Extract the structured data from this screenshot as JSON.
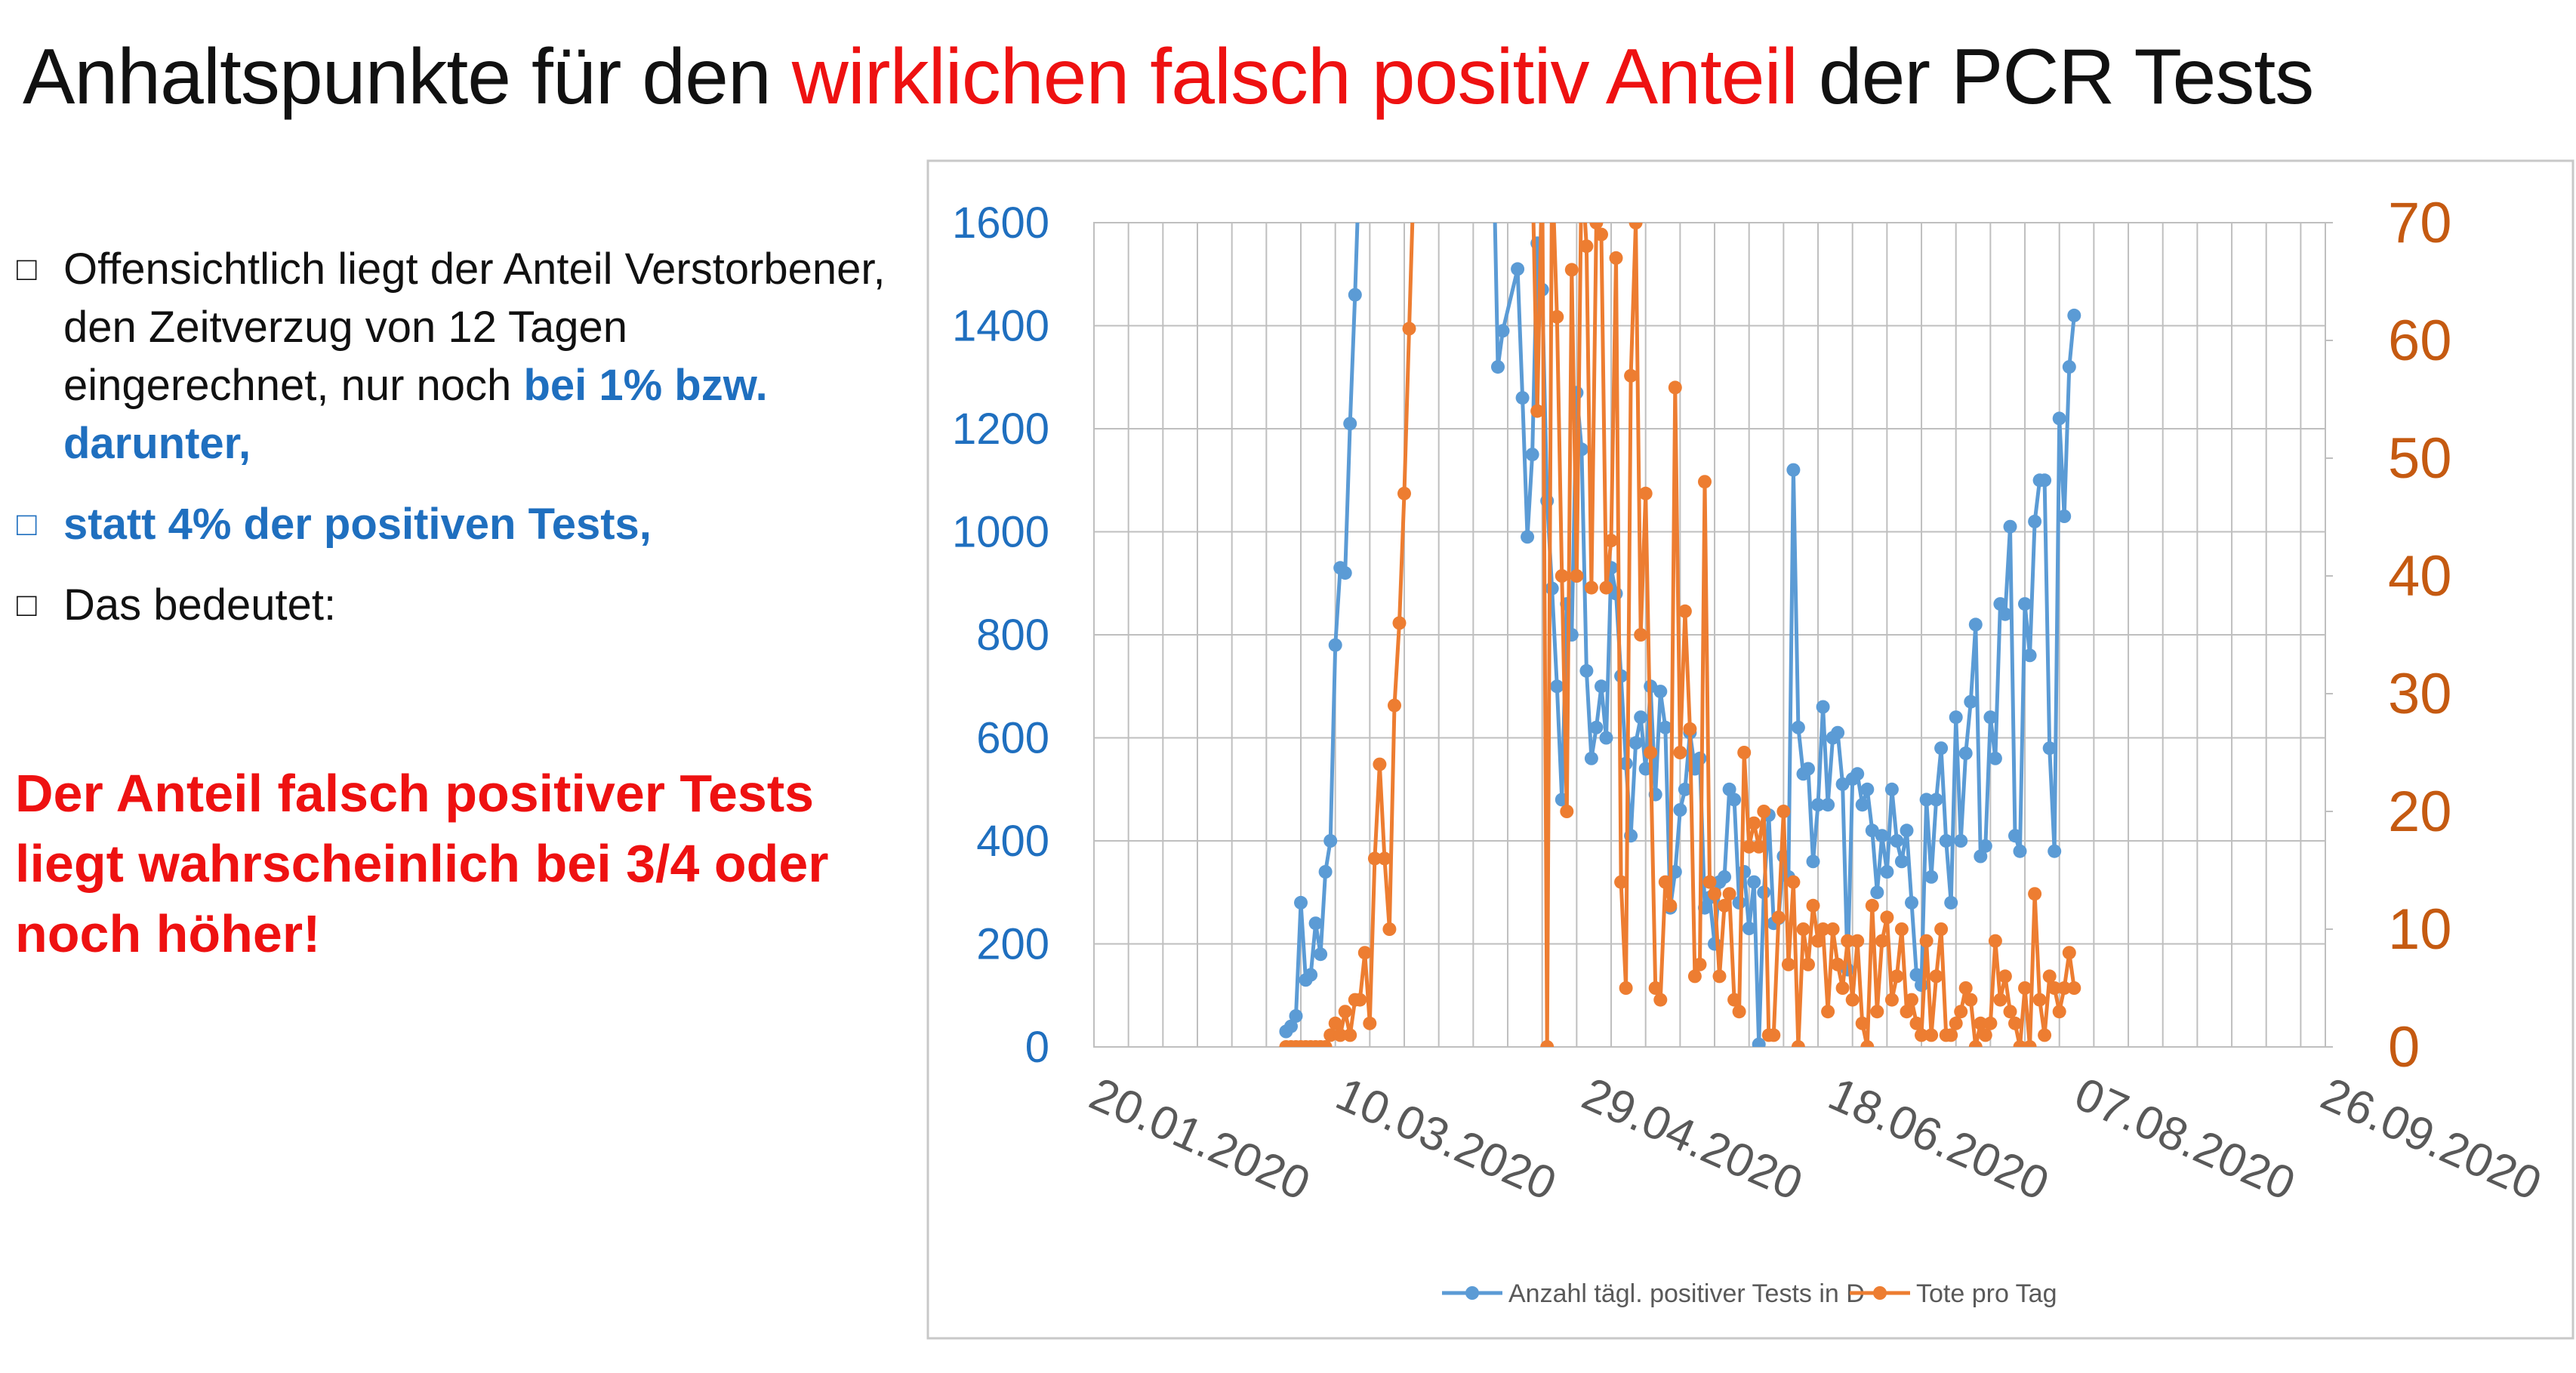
{
  "title": {
    "part1": "Anhaltspunkte für den ",
    "highlight": "wirklichen falsch positiv Anteil",
    "part2": " der PCR Tests"
  },
  "bullets": [
    {
      "marker": "□",
      "text": "Offensichtlich liegt der Anteil Verstorbener, den Zeitverzug von 12 Tagen eingerechnet, nur noch ",
      "bold": "bei 1% bzw. darunter,"
    },
    {
      "marker": "□",
      "text": "",
      "bold": "statt 4% der positiven Tests,"
    },
    {
      "marker": "□",
      "text": "Das bedeutet:",
      "bold": ""
    }
  ],
  "conclusion": "Der Anteil falsch positiver Tests liegt wahrscheinlich bei 3/4 oder noch höher!",
  "colors": {
    "blue_series": "#5b9bd5",
    "orange_series": "#ed7d31",
    "left_axis": "#1f6fbf",
    "right_axis": "#c55a11",
    "highlight": "#ee1111"
  },
  "chart_data": {
    "type": "line",
    "x_ticks": [
      "20.01.2020",
      "10.03.2020",
      "29.04.2020",
      "18.06.2020",
      "07.08.2020",
      "26.09.2020"
    ],
    "x_range": [
      "2020-01-20",
      "2020-09-26"
    ],
    "y_left": {
      "ticks": [
        "0",
        "200",
        "400",
        "600",
        "800",
        "1000",
        "1200",
        "1400",
        "1600"
      ],
      "range": [
        0,
        1600
      ]
    },
    "y_right": {
      "ticks": [
        "0",
        "10",
        "20",
        "30",
        "40",
        "50",
        "60",
        "70"
      ],
      "range": [
        0,
        70
      ]
    },
    "grid": true,
    "legend_position": "bottom",
    "series": [
      {
        "name": "Anzahl tägl. positiver Tests in D",
        "axis": "left",
        "color": "#5b9bd5",
        "points": [
          [
            "2020-02-28",
            30
          ],
          [
            "2020-02-29",
            40
          ],
          [
            "2020-03-01",
            60
          ],
          [
            "2020-03-02",
            280
          ],
          [
            "2020-03-03",
            130
          ],
          [
            "2020-03-04",
            140
          ],
          [
            "2020-03-05",
            240
          ],
          [
            "2020-03-06",
            180
          ],
          [
            "2020-03-07",
            340
          ],
          [
            "2020-03-08",
            400
          ],
          [
            "2020-03-09",
            780
          ],
          [
            "2020-03-10",
            930
          ],
          [
            "2020-03-11",
            920
          ],
          [
            "2020-03-12",
            1210
          ],
          [
            "2020-03-13",
            1460
          ],
          [
            "2020-03-14",
            1750
          ],
          [
            "2020-04-10",
            1800
          ],
          [
            "2020-04-11",
            1320
          ],
          [
            "2020-04-12",
            1390
          ],
          [
            "2020-04-15",
            1510
          ],
          [
            "2020-04-16",
            1260
          ],
          [
            "2020-04-17",
            990
          ],
          [
            "2020-04-18",
            1150
          ],
          [
            "2020-04-19",
            1560
          ],
          [
            "2020-04-20",
            1470
          ],
          [
            "2020-04-21",
            1060
          ],
          [
            "2020-04-22",
            890
          ],
          [
            "2020-04-23",
            700
          ],
          [
            "2020-04-24",
            480
          ],
          [
            "2020-04-25",
            860
          ],
          [
            "2020-04-26",
            800
          ],
          [
            "2020-04-27",
            1270
          ],
          [
            "2020-04-28",
            1160
          ],
          [
            "2020-04-29",
            730
          ],
          [
            "2020-04-30",
            560
          ],
          [
            "2020-05-01",
            620
          ],
          [
            "2020-05-02",
            700
          ],
          [
            "2020-05-03",
            600
          ],
          [
            "2020-05-04",
            930
          ],
          [
            "2020-05-05",
            880
          ],
          [
            "2020-05-06",
            720
          ],
          [
            "2020-05-07",
            550
          ],
          [
            "2020-05-08",
            410
          ],
          [
            "2020-05-09",
            590
          ],
          [
            "2020-05-10",
            640
          ],
          [
            "2020-05-11",
            540
          ],
          [
            "2020-05-12",
            700
          ],
          [
            "2020-05-13",
            490
          ],
          [
            "2020-05-14",
            690
          ],
          [
            "2020-05-15",
            620
          ],
          [
            "2020-05-16",
            270
          ],
          [
            "2020-05-17",
            340
          ],
          [
            "2020-05-18",
            460
          ],
          [
            "2020-05-19",
            500
          ],
          [
            "2020-05-20",
            610
          ],
          [
            "2020-05-21",
            540
          ],
          [
            "2020-05-22",
            560
          ],
          [
            "2020-05-23",
            270
          ],
          [
            "2020-05-24",
            290
          ],
          [
            "2020-05-25",
            200
          ],
          [
            "2020-05-26",
            320
          ],
          [
            "2020-05-27",
            330
          ],
          [
            "2020-05-28",
            500
          ],
          [
            "2020-05-29",
            480
          ],
          [
            "2020-05-30",
            280
          ],
          [
            "2020-05-31",
            340
          ],
          [
            "2020-06-01",
            230
          ],
          [
            "2020-06-02",
            320
          ],
          [
            "2020-06-03",
            5
          ],
          [
            "2020-06-04",
            300
          ],
          [
            "2020-06-05",
            450
          ],
          [
            "2020-06-06",
            240
          ],
          [
            "2020-06-07",
            250
          ],
          [
            "2020-06-08",
            370
          ],
          [
            "2020-06-09",
            330
          ],
          [
            "2020-06-10",
            1120
          ],
          [
            "2020-06-11",
            620
          ],
          [
            "2020-06-12",
            530
          ],
          [
            "2020-06-13",
            540
          ],
          [
            "2020-06-14",
            360
          ],
          [
            "2020-06-15",
            470
          ],
          [
            "2020-06-16",
            660
          ],
          [
            "2020-06-17",
            470
          ],
          [
            "2020-06-18",
            600
          ],
          [
            "2020-06-19",
            610
          ],
          [
            "2020-06-20",
            510
          ],
          [
            "2020-06-21",
            150
          ],
          [
            "2020-06-22",
            520
          ],
          [
            "2020-06-23",
            530
          ],
          [
            "2020-06-24",
            470
          ],
          [
            "2020-06-25",
            500
          ],
          [
            "2020-06-26",
            420
          ],
          [
            "2020-06-27",
            300
          ],
          [
            "2020-06-28",
            410
          ],
          [
            "2020-06-29",
            340
          ],
          [
            "2020-06-30",
            500
          ],
          [
            "2020-07-01",
            400
          ],
          [
            "2020-07-02",
            360
          ],
          [
            "2020-07-03",
            420
          ],
          [
            "2020-07-04",
            280
          ],
          [
            "2020-07-05",
            140
          ],
          [
            "2020-07-06",
            120
          ],
          [
            "2020-07-07",
            480
          ],
          [
            "2020-07-08",
            330
          ],
          [
            "2020-07-09",
            480
          ],
          [
            "2020-07-10",
            580
          ],
          [
            "2020-07-11",
            400
          ],
          [
            "2020-07-12",
            280
          ],
          [
            "2020-07-13",
            640
          ],
          [
            "2020-07-14",
            400
          ],
          [
            "2020-07-15",
            570
          ],
          [
            "2020-07-16",
            670
          ],
          [
            "2020-07-17",
            820
          ],
          [
            "2020-07-18",
            370
          ],
          [
            "2020-07-19",
            390
          ],
          [
            "2020-07-20",
            640
          ],
          [
            "2020-07-21",
            560
          ],
          [
            "2020-07-22",
            860
          ],
          [
            "2020-07-23",
            840
          ],
          [
            "2020-07-24",
            1010
          ],
          [
            "2020-07-25",
            410
          ],
          [
            "2020-07-26",
            380
          ],
          [
            "2020-07-27",
            860
          ],
          [
            "2020-07-28",
            760
          ],
          [
            "2020-07-29",
            1020
          ],
          [
            "2020-07-30",
            1100
          ],
          [
            "2020-07-31",
            1100
          ],
          [
            "2020-08-01",
            580
          ],
          [
            "2020-08-02",
            380
          ],
          [
            "2020-08-03",
            1220
          ],
          [
            "2020-08-04",
            1030
          ],
          [
            "2020-08-05",
            1320
          ],
          [
            "2020-08-06",
            1420
          ]
        ]
      },
      {
        "name": "Tote pro Tag",
        "axis": "right",
        "color": "#ed7d31",
        "points": [
          [
            "2020-02-28",
            0
          ],
          [
            "2020-02-29",
            0
          ],
          [
            "2020-03-01",
            0
          ],
          [
            "2020-03-02",
            0
          ],
          [
            "2020-03-03",
            0
          ],
          [
            "2020-03-04",
            0
          ],
          [
            "2020-03-05",
            0
          ],
          [
            "2020-03-06",
            0
          ],
          [
            "2020-03-07",
            0
          ],
          [
            "2020-03-08",
            1
          ],
          [
            "2020-03-09",
            2
          ],
          [
            "2020-03-10",
            1
          ],
          [
            "2020-03-11",
            3
          ],
          [
            "2020-03-12",
            1
          ],
          [
            "2020-03-13",
            4
          ],
          [
            "2020-03-14",
            4
          ],
          [
            "2020-03-15",
            8
          ],
          [
            "2020-03-16",
            2
          ],
          [
            "2020-03-17",
            16
          ],
          [
            "2020-03-18",
            24
          ],
          [
            "2020-03-19",
            16
          ],
          [
            "2020-03-20",
            10
          ],
          [
            "2020-03-21",
            29
          ],
          [
            "2020-03-22",
            36
          ],
          [
            "2020-03-23",
            47
          ],
          [
            "2020-03-24",
            61
          ],
          [
            "2020-03-25",
            75
          ],
          [
            "2020-04-18",
            75
          ],
          [
            "2020-04-19",
            54
          ],
          [
            "2020-04-20",
            75
          ],
          [
            "2020-04-21",
            0
          ],
          [
            "2020-04-22",
            75
          ],
          [
            "2020-04-23",
            62
          ],
          [
            "2020-04-24",
            40
          ],
          [
            "2020-04-25",
            20
          ],
          [
            "2020-04-26",
            66
          ],
          [
            "2020-04-27",
            40
          ],
          [
            "2020-04-28",
            75
          ],
          [
            "2020-04-29",
            68
          ],
          [
            "2020-04-30",
            39
          ],
          [
            "2020-05-01",
            70
          ],
          [
            "2020-05-02",
            69
          ],
          [
            "2020-05-03",
            39
          ],
          [
            "2020-05-04",
            43
          ],
          [
            "2020-05-05",
            67
          ],
          [
            "2020-05-06",
            14
          ],
          [
            "2020-05-07",
            5
          ],
          [
            "2020-05-08",
            57
          ],
          [
            "2020-05-09",
            70
          ],
          [
            "2020-05-10",
            35
          ],
          [
            "2020-05-11",
            47
          ],
          [
            "2020-05-12",
            25
          ],
          [
            "2020-05-13",
            5
          ],
          [
            "2020-05-14",
            4
          ],
          [
            "2020-05-15",
            14
          ],
          [
            "2020-05-16",
            12
          ],
          [
            "2020-05-17",
            56
          ],
          [
            "2020-05-18",
            25
          ],
          [
            "2020-05-19",
            37
          ],
          [
            "2020-05-20",
            27
          ],
          [
            "2020-05-21",
            6
          ],
          [
            "2020-05-22",
            7
          ],
          [
            "2020-05-23",
            48
          ],
          [
            "2020-05-24",
            14
          ],
          [
            "2020-05-25",
            13
          ],
          [
            "2020-05-26",
            6
          ],
          [
            "2020-05-27",
            12
          ],
          [
            "2020-05-28",
            13
          ],
          [
            "2020-05-29",
            4
          ],
          [
            "2020-05-30",
            3
          ],
          [
            "2020-05-31",
            25
          ],
          [
            "2020-06-01",
            17
          ],
          [
            "2020-06-02",
            19
          ],
          [
            "2020-06-03",
            17
          ],
          [
            "2020-06-04",
            20
          ],
          [
            "2020-06-05",
            1
          ],
          [
            "2020-06-06",
            1
          ],
          [
            "2020-06-07",
            11
          ],
          [
            "2020-06-08",
            20
          ],
          [
            "2020-06-09",
            7
          ],
          [
            "2020-06-10",
            14
          ],
          [
            "2020-06-11",
            0
          ],
          [
            "2020-06-12",
            10
          ],
          [
            "2020-06-13",
            7
          ],
          [
            "2020-06-14",
            12
          ],
          [
            "2020-06-15",
            9
          ],
          [
            "2020-06-16",
            10
          ],
          [
            "2020-06-17",
            3
          ],
          [
            "2020-06-18",
            10
          ],
          [
            "2020-06-19",
            7
          ],
          [
            "2020-06-20",
            5
          ],
          [
            "2020-06-21",
            9
          ],
          [
            "2020-06-22",
            4
          ],
          [
            "2020-06-23",
            9
          ],
          [
            "2020-06-24",
            2
          ],
          [
            "2020-06-25",
            0
          ],
          [
            "2020-06-26",
            12
          ],
          [
            "2020-06-27",
            3
          ],
          [
            "2020-06-28",
            9
          ],
          [
            "2020-06-29",
            11
          ],
          [
            "2020-06-30",
            4
          ],
          [
            "2020-07-01",
            6
          ],
          [
            "2020-07-02",
            10
          ],
          [
            "2020-07-03",
            3
          ],
          [
            "2020-07-04",
            4
          ],
          [
            "2020-07-05",
            2
          ],
          [
            "2020-07-06",
            1
          ],
          [
            "2020-07-07",
            9
          ],
          [
            "2020-07-08",
            1
          ],
          [
            "2020-07-09",
            6
          ],
          [
            "2020-07-10",
            10
          ],
          [
            "2020-07-11",
            1
          ],
          [
            "2020-07-12",
            1
          ],
          [
            "2020-07-13",
            2
          ],
          [
            "2020-07-14",
            3
          ],
          [
            "2020-07-15",
            5
          ],
          [
            "2020-07-16",
            4
          ],
          [
            "2020-07-17",
            0
          ],
          [
            "2020-07-18",
            2
          ],
          [
            "2020-07-19",
            1
          ],
          [
            "2020-07-20",
            2
          ],
          [
            "2020-07-21",
            9
          ],
          [
            "2020-07-22",
            4
          ],
          [
            "2020-07-23",
            6
          ],
          [
            "2020-07-24",
            3
          ],
          [
            "2020-07-25",
            2
          ],
          [
            "2020-07-26",
            0
          ],
          [
            "2020-07-27",
            5
          ],
          [
            "2020-07-28",
            0
          ],
          [
            "2020-07-29",
            13
          ],
          [
            "2020-07-30",
            4
          ],
          [
            "2020-07-31",
            1
          ],
          [
            "2020-08-01",
            6
          ],
          [
            "2020-08-02",
            5
          ],
          [
            "2020-08-03",
            3
          ],
          [
            "2020-08-04",
            5
          ],
          [
            "2020-08-05",
            8
          ],
          [
            "2020-08-06",
            5
          ]
        ]
      }
    ]
  }
}
